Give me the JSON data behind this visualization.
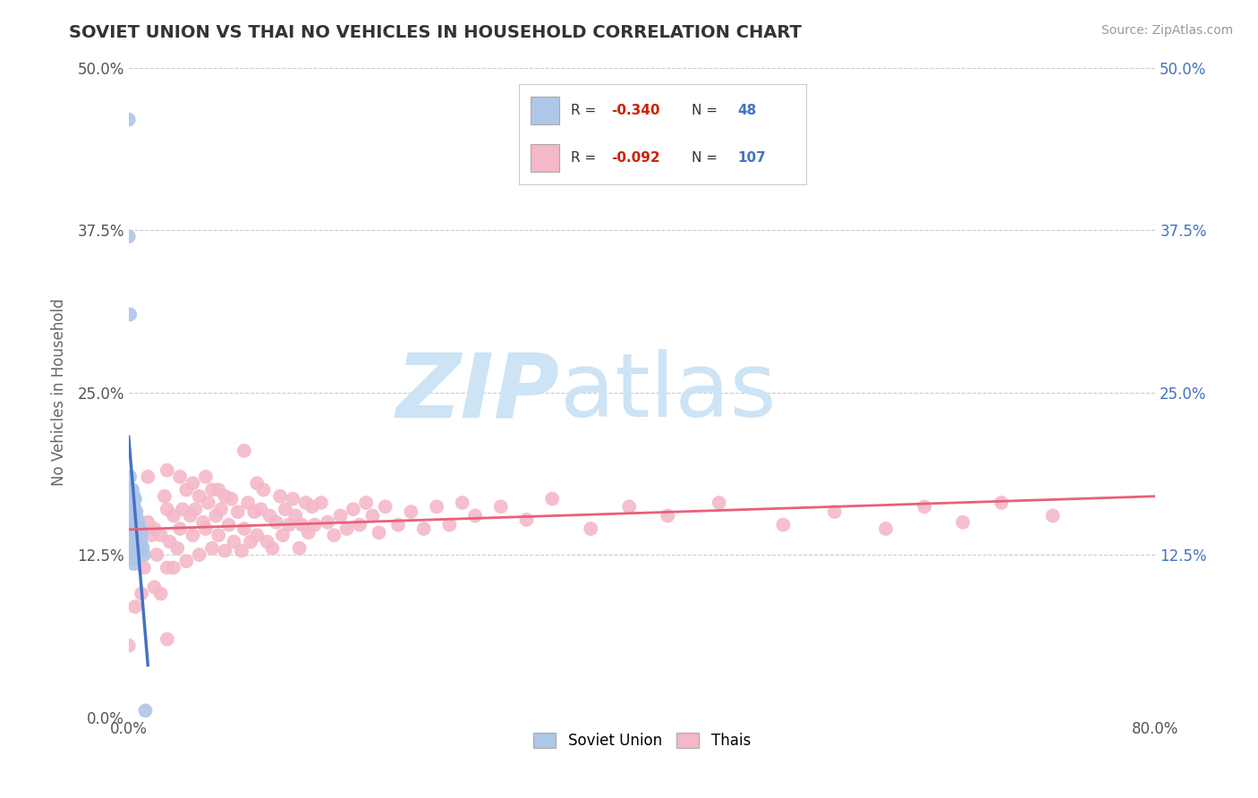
{
  "title": "SOVIET UNION VS THAI NO VEHICLES IN HOUSEHOLD CORRELATION CHART",
  "source": "Source: ZipAtlas.com",
  "ylabel": "No Vehicles in Household",
  "xlim": [
    0.0,
    0.8
  ],
  "ylim": [
    0.0,
    0.5
  ],
  "xticks": [
    0.0,
    0.8
  ],
  "xticklabels": [
    "0.0%",
    "80.0%"
  ],
  "yticks_left": [
    0.0,
    0.125,
    0.25,
    0.375,
    0.5
  ],
  "yticklabels_left": [
    "0.0%",
    "12.5%",
    "25.0%",
    "37.5%",
    "50.0%"
  ],
  "yticks_right": [
    0.125,
    0.25,
    0.375,
    0.5
  ],
  "yticklabels_right": [
    "12.5%",
    "25.0%",
    "37.5%",
    "50.0%"
  ],
  "color_soviet": "#aec6e8",
  "color_thai": "#f4b8c8",
  "color_soviet_line": "#4472c4",
  "color_thai_line": "#e8607a",
  "watermark_color": "#cce4f5",
  "grid_color": "#cccccc",
  "title_color": "#333333",
  "axis_label_color": "#666666",
  "tick_color": "#555555",
  "right_tick_color": "#4472c4",
  "background": "#ffffff",
  "soviet_x": [
    0.0,
    0.0,
    0.001,
    0.001,
    0.001,
    0.002,
    0.002,
    0.002,
    0.002,
    0.002,
    0.003,
    0.003,
    0.003,
    0.003,
    0.003,
    0.003,
    0.003,
    0.004,
    0.004,
    0.004,
    0.004,
    0.004,
    0.004,
    0.004,
    0.004,
    0.005,
    0.005,
    0.005,
    0.005,
    0.005,
    0.005,
    0.005,
    0.006,
    0.006,
    0.006,
    0.006,
    0.007,
    0.007,
    0.007,
    0.008,
    0.008,
    0.009,
    0.009,
    0.01,
    0.01,
    0.011,
    0.012,
    0.013
  ],
  "soviet_y": [
    0.46,
    0.37,
    0.31,
    0.185,
    0.165,
    0.175,
    0.165,
    0.155,
    0.145,
    0.135,
    0.175,
    0.165,
    0.155,
    0.148,
    0.14,
    0.132,
    0.122,
    0.17,
    0.162,
    0.155,
    0.148,
    0.14,
    0.133,
    0.125,
    0.118,
    0.168,
    0.16,
    0.152,
    0.145,
    0.138,
    0.13,
    0.122,
    0.158,
    0.15,
    0.143,
    0.135,
    0.152,
    0.143,
    0.135,
    0.148,
    0.14,
    0.145,
    0.138,
    0.142,
    0.133,
    0.13,
    0.125,
    0.005
  ],
  "thai_x": [
    0.0,
    0.005,
    0.008,
    0.01,
    0.012,
    0.015,
    0.015,
    0.018,
    0.02,
    0.02,
    0.022,
    0.025,
    0.025,
    0.028,
    0.03,
    0.03,
    0.03,
    0.032,
    0.035,
    0.035,
    0.038,
    0.04,
    0.04,
    0.042,
    0.045,
    0.045,
    0.048,
    0.05,
    0.05,
    0.052,
    0.055,
    0.055,
    0.058,
    0.06,
    0.06,
    0.062,
    0.065,
    0.065,
    0.068,
    0.07,
    0.07,
    0.072,
    0.075,
    0.075,
    0.078,
    0.08,
    0.082,
    0.085,
    0.088,
    0.09,
    0.09,
    0.093,
    0.095,
    0.098,
    0.1,
    0.1,
    0.103,
    0.105,
    0.108,
    0.11,
    0.112,
    0.115,
    0.118,
    0.12,
    0.122,
    0.125,
    0.128,
    0.13,
    0.133,
    0.135,
    0.138,
    0.14,
    0.143,
    0.145,
    0.15,
    0.155,
    0.16,
    0.165,
    0.17,
    0.175,
    0.18,
    0.185,
    0.19,
    0.195,
    0.2,
    0.21,
    0.22,
    0.23,
    0.24,
    0.25,
    0.26,
    0.27,
    0.29,
    0.31,
    0.33,
    0.36,
    0.39,
    0.42,
    0.46,
    0.51,
    0.55,
    0.59,
    0.62,
    0.65,
    0.68,
    0.72,
    0.03
  ],
  "thai_y": [
    0.055,
    0.085,
    0.13,
    0.095,
    0.115,
    0.15,
    0.185,
    0.14,
    0.145,
    0.1,
    0.125,
    0.14,
    0.095,
    0.17,
    0.19,
    0.16,
    0.115,
    0.135,
    0.155,
    0.115,
    0.13,
    0.185,
    0.145,
    0.16,
    0.175,
    0.12,
    0.155,
    0.18,
    0.14,
    0.16,
    0.17,
    0.125,
    0.15,
    0.185,
    0.145,
    0.165,
    0.175,
    0.13,
    0.155,
    0.175,
    0.14,
    0.16,
    0.17,
    0.128,
    0.148,
    0.168,
    0.135,
    0.158,
    0.128,
    0.205,
    0.145,
    0.165,
    0.135,
    0.158,
    0.18,
    0.14,
    0.16,
    0.175,
    0.135,
    0.155,
    0.13,
    0.15,
    0.17,
    0.14,
    0.16,
    0.148,
    0.168,
    0.155,
    0.13,
    0.148,
    0.165,
    0.142,
    0.162,
    0.148,
    0.165,
    0.15,
    0.14,
    0.155,
    0.145,
    0.16,
    0.148,
    0.165,
    0.155,
    0.142,
    0.162,
    0.148,
    0.158,
    0.145,
    0.162,
    0.148,
    0.165,
    0.155,
    0.162,
    0.152,
    0.168,
    0.145,
    0.162,
    0.155,
    0.165,
    0.148,
    0.158,
    0.145,
    0.162,
    0.15,
    0.165,
    0.155,
    0.06
  ]
}
